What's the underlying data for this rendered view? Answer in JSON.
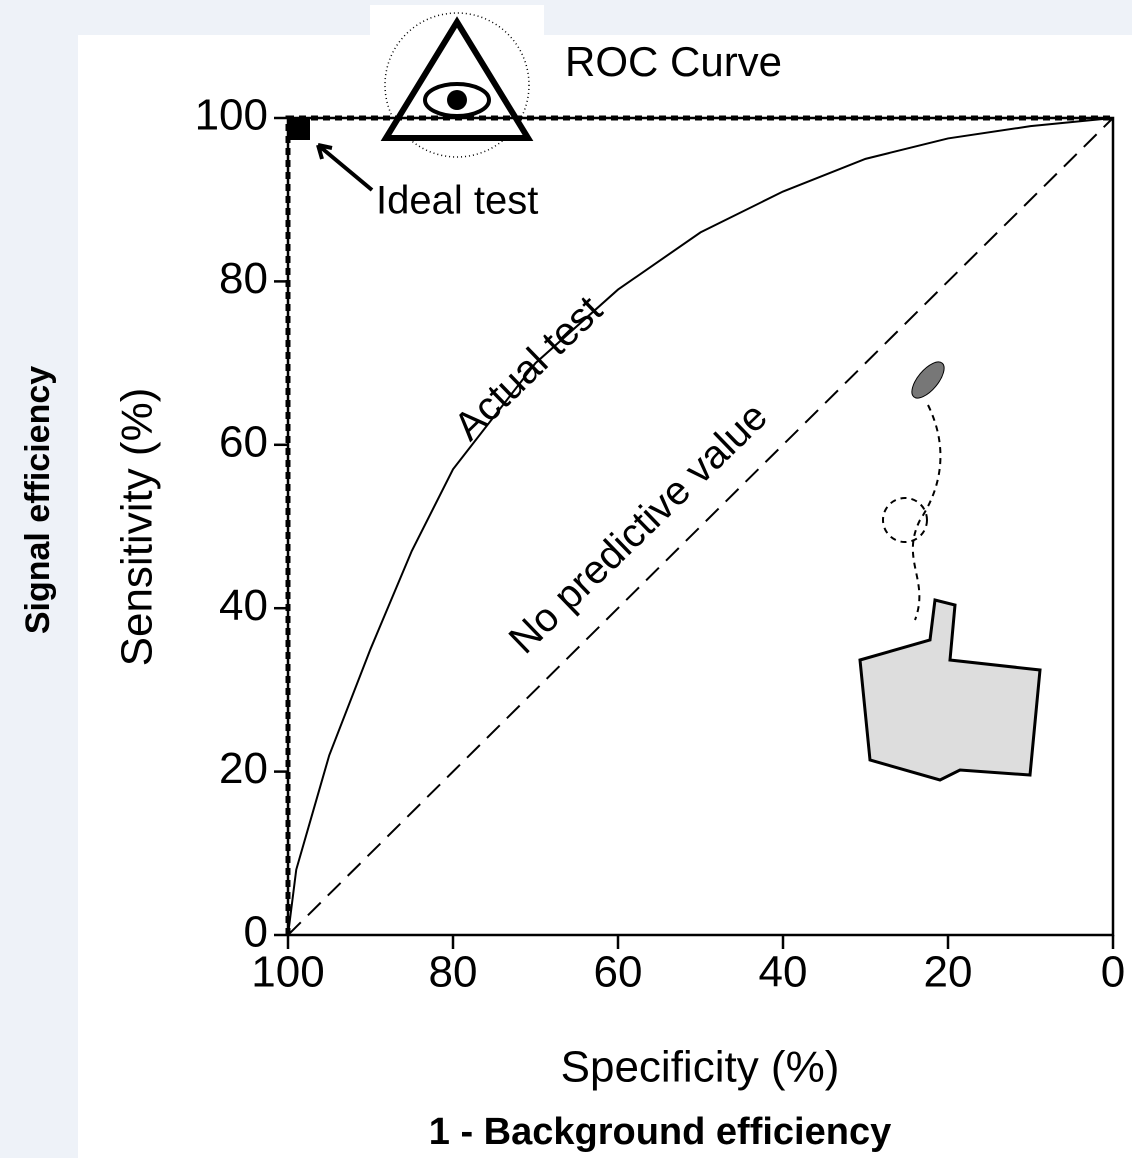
{
  "chart_data": {
    "type": "line",
    "title": "ROC Curve",
    "x_label": "Specificity (%)",
    "x_label_2": "1 - Background efficiency",
    "y_label": "Sensitivity (%)",
    "y_label_2": "Signal efficiency",
    "annotation": "Ideal test",
    "xlim": [
      100,
      0
    ],
    "xticks": [
      100,
      80,
      60,
      40,
      20,
      0
    ],
    "ylim": [
      0,
      100
    ],
    "yticks": [
      0,
      20,
      40,
      60,
      80,
      100
    ],
    "grid": false,
    "series": [
      {
        "name": "Ideal test",
        "color": "#000000",
        "line_style": "dotted",
        "x": [
          100,
          100,
          0
        ],
        "values": [
          0,
          100,
          100
        ]
      },
      {
        "name": "Actual test",
        "color": "#000000",
        "line_style": "solid",
        "x": [
          100,
          99,
          97,
          95,
          90,
          85,
          80,
          70,
          60,
          50,
          40,
          30,
          20,
          10,
          0
        ],
        "values": [
          0,
          8,
          15,
          22,
          35,
          47,
          57,
          70,
          79,
          86,
          91,
          95,
          97.5,
          99,
          100
        ]
      },
      {
        "name": "No predictive value",
        "color": "#000000",
        "line_style": "dashed",
        "x": [
          100,
          0
        ],
        "values": [
          0,
          100
        ]
      }
    ]
  }
}
